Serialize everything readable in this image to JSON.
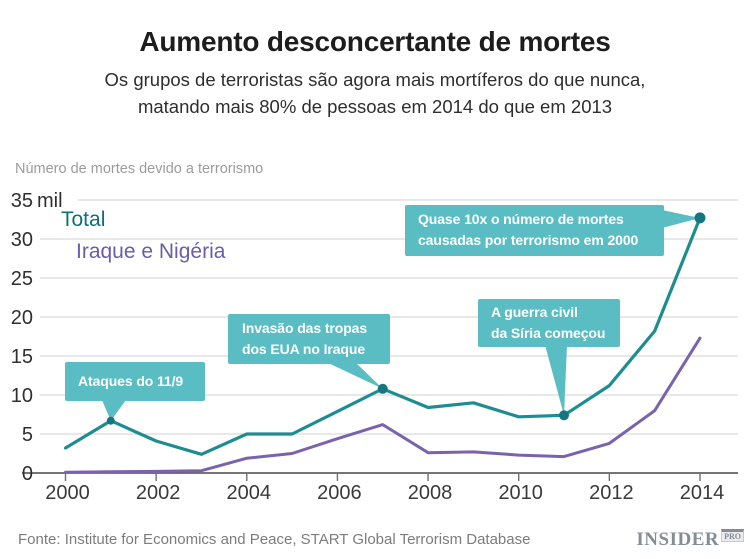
{
  "header": {
    "title": "Aumento desconcertante de mortes",
    "subtitle_lines": [
      "Os grupos de terroristas são agora mais mortíferos do que nunca,",
      "matando mais 80% de pessoas em 2014 do que em 2013"
    ]
  },
  "chart_data": {
    "type": "line",
    "axis_title": "Número de mortes devido a terrorismo",
    "unit": "mil",
    "x": [
      2000,
      2001,
      2002,
      2003,
      2004,
      2005,
      2006,
      2007,
      2008,
      2009,
      2010,
      2011,
      2012,
      2013,
      2014
    ],
    "series": [
      {
        "name": "Total",
        "color": "#1d8d92",
        "legend_color": "#0d7077",
        "values": [
          3.2,
          6.7,
          4.1,
          2.4,
          5.0,
          5.0,
          7.9,
          10.8,
          8.4,
          9.0,
          7.2,
          7.4,
          11.2,
          18.2,
          32.7
        ]
      },
      {
        "name": "Iraque e Nigéria",
        "color": "#7b62ad",
        "legend_color": "#6b5caa",
        "values": [
          0.1,
          0.15,
          0.2,
          0.3,
          1.9,
          2.5,
          4.4,
          6.2,
          2.6,
          2.7,
          2.3,
          2.1,
          3.8,
          8.0,
          17.3
        ]
      }
    ],
    "ylim": [
      0,
      35
    ],
    "yticks": [
      0,
      5,
      10,
      15,
      20,
      25,
      30,
      35
    ],
    "ytick_unit_suffix": "mil",
    "xticks": [
      2000,
      2002,
      2004,
      2006,
      2008,
      2010,
      2012,
      2014
    ],
    "grid": true,
    "legend_position": "inside-top-left",
    "annotations": [
      {
        "text_lines": [
          "Ataques do 11/9"
        ],
        "year": 2001,
        "value": 6.7
      },
      {
        "text_lines": [
          "Invasão das tropas",
          "dos EUA no Iraque"
        ],
        "year": 2007,
        "value": 10.8
      },
      {
        "text_lines": [
          "A guerra civil",
          "da Síria começou"
        ],
        "year": 2011,
        "value": 7.4
      },
      {
        "text_lines": [
          "Quase 10x o número de mortes",
          "causadas por terrorismo em 2000"
        ],
        "year": 2014,
        "value": 32.7
      }
    ],
    "colors": {
      "callout_bg": "#5abdc4",
      "callout_text": "#ffffff",
      "marker": "#157580",
      "grid": "#d9d9d9",
      "axis": "#636363",
      "tick": "#707070"
    }
  },
  "footer": {
    "source": "Fonte: Institute for Economics and Peace, START Global Terrorism Database",
    "logo_main": "INSIDER",
    "logo_sub": "PRO"
  }
}
